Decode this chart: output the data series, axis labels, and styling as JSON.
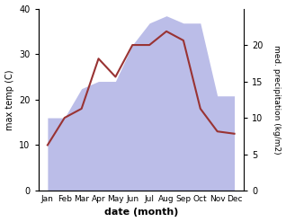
{
  "months": [
    "Jan",
    "Feb",
    "Mar",
    "Apr",
    "May",
    "Jun",
    "Jul",
    "Aug",
    "Sep",
    "Oct",
    "Nov",
    "Dec"
  ],
  "temperature": [
    10,
    16,
    18,
    29,
    25,
    32,
    32,
    35,
    33,
    18,
    13,
    12.5
  ],
  "precipitation": [
    10,
    10,
    14,
    15,
    15,
    20,
    23,
    24,
    23,
    23,
    13,
    13
  ],
  "temp_color": "#993333",
  "precip_fill_color": "#bbbde8",
  "xlabel": "date (month)",
  "ylabel_left": "max temp (C)",
  "ylabel_right": "med. precipitation (kg/m2)",
  "ylim_left": [
    0,
    40
  ],
  "ylim_right": [
    0,
    25
  ],
  "yticks_left": [
    0,
    10,
    20,
    30,
    40
  ],
  "yticks_right": [
    0,
    5,
    10,
    15,
    20
  ],
  "background_color": "#ffffff",
  "fig_width": 3.18,
  "fig_height": 2.47,
  "dpi": 100
}
